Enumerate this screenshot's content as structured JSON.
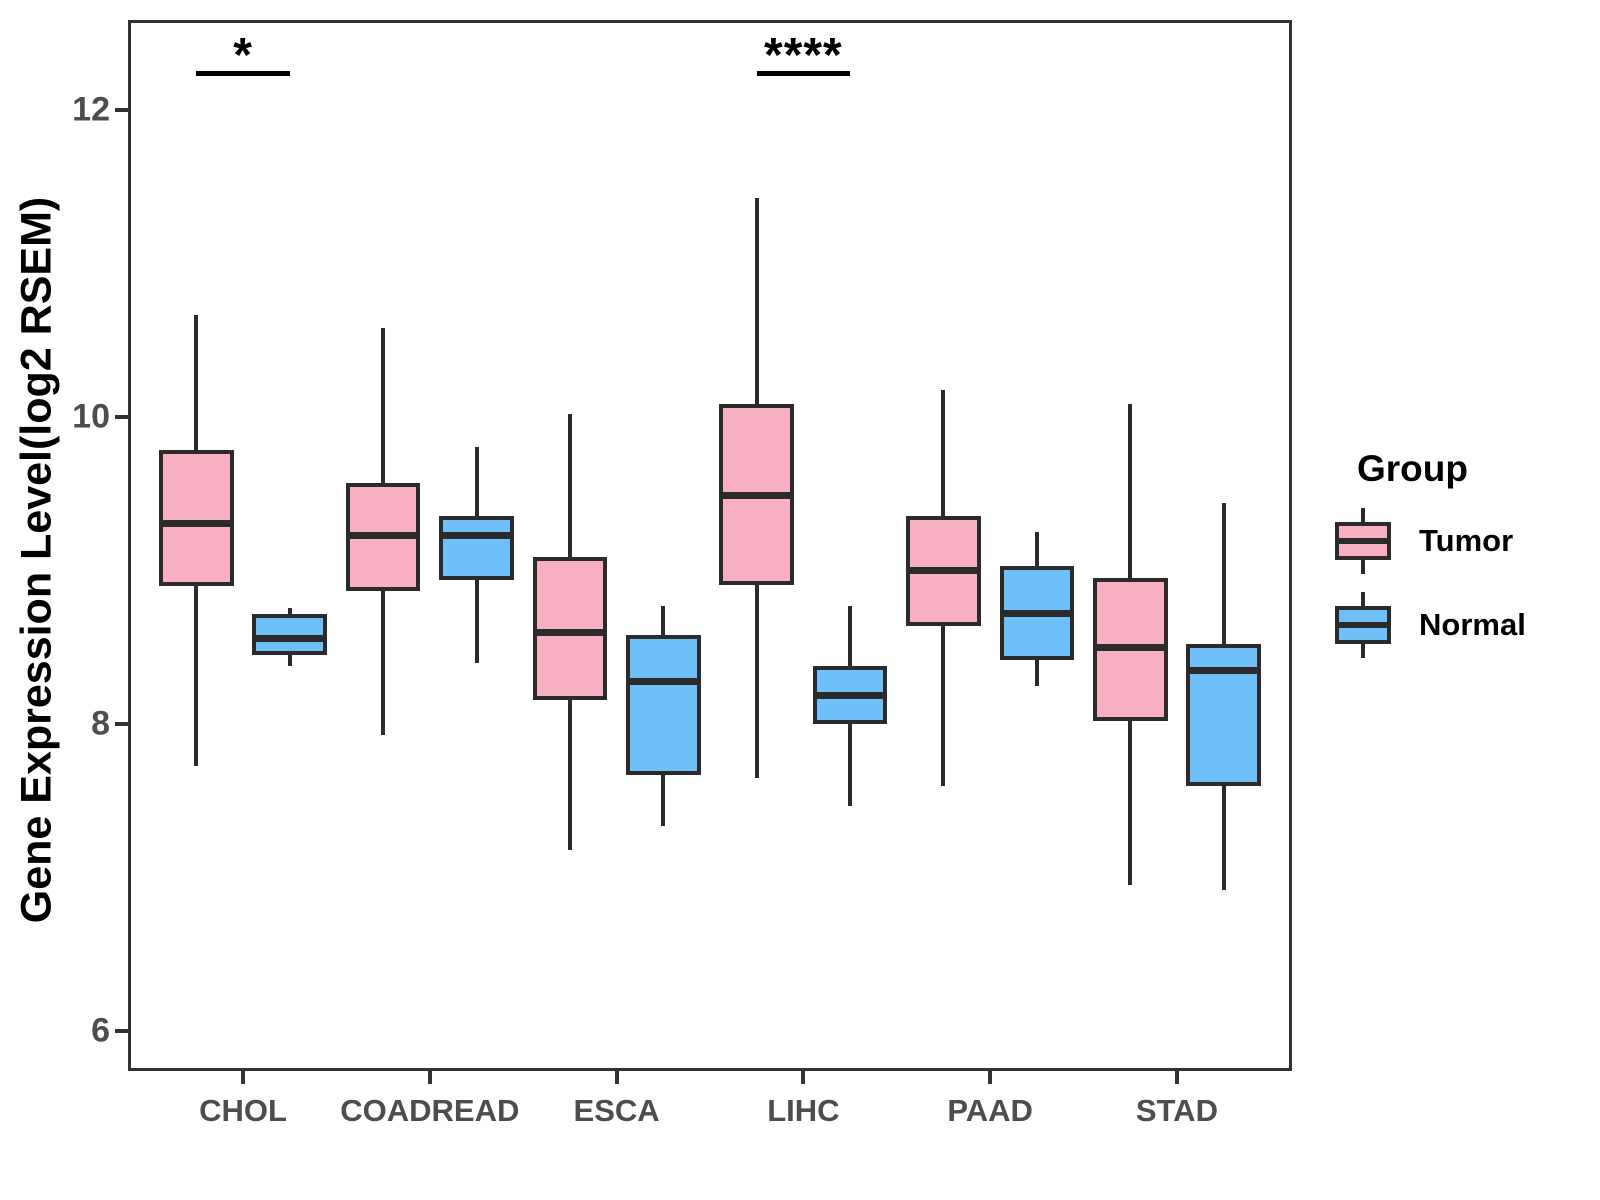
{
  "figure": {
    "background": "#ffffff"
  },
  "axis": {
    "y_title": "Gene Expression Level(log2 RSEM)",
    "x_title": "",
    "tick_color": "#333333",
    "tick_text_color": "#4d4d4d"
  },
  "legend": {
    "title": "Group",
    "items": [
      {
        "label": "Tumor",
        "fill": "#f9afc2"
      },
      {
        "label": "Normal",
        "fill": "#6fbff8"
      }
    ]
  },
  "chart_data": {
    "type": "boxplot",
    "title": "",
    "xlabel": "",
    "ylabel": "Gene Expression Level(log2 RSEM)",
    "ylim": [
      5.76,
      12.57
    ],
    "yticks": [
      6,
      8,
      10,
      12
    ],
    "grid": false,
    "legend_position": "right",
    "legend_title": "Group",
    "stroke_color": "#2b2b2b",
    "categories": [
      "CHOL",
      "COADREAD",
      "ESCA",
      "LIHC",
      "PAAD",
      "STAD"
    ],
    "series": [
      {
        "name": "Tumor",
        "fill": "#f9afc2",
        "boxes": [
          {
            "category": "CHOL",
            "min": 7.73,
            "q1": 8.9,
            "median": 9.31,
            "q3": 9.79,
            "max": 10.67
          },
          {
            "category": "COADREAD",
            "min": 7.93,
            "q1": 8.87,
            "median": 9.23,
            "q3": 9.57,
            "max": 10.58
          },
          {
            "category": "ESCA",
            "min": 7.18,
            "q1": 8.16,
            "median": 8.6,
            "q3": 9.09,
            "max": 10.02
          },
          {
            "category": "LIHC",
            "min": 7.65,
            "q1": 8.91,
            "median": 9.49,
            "q3": 10.09,
            "max": 11.43
          },
          {
            "category": "PAAD",
            "min": 7.6,
            "q1": 8.64,
            "median": 9.0,
            "q3": 9.36,
            "max": 10.18
          },
          {
            "category": "STAD",
            "min": 6.95,
            "q1": 8.02,
            "median": 8.5,
            "q3": 8.95,
            "max": 10.09
          }
        ]
      },
      {
        "name": "Normal",
        "fill": "#6fbff8",
        "boxes": [
          {
            "category": "CHOL",
            "min": 8.38,
            "q1": 8.45,
            "median": 8.56,
            "q3": 8.72,
            "max": 8.76
          },
          {
            "category": "COADREAD",
            "min": 8.4,
            "q1": 8.94,
            "median": 9.23,
            "q3": 9.36,
            "max": 9.81
          },
          {
            "category": "ESCA",
            "min": 7.34,
            "q1": 7.67,
            "median": 8.28,
            "q3": 8.58,
            "max": 8.77
          },
          {
            "category": "LIHC",
            "min": 7.47,
            "q1": 8.0,
            "median": 8.19,
            "q3": 8.38,
            "max": 8.77
          },
          {
            "category": "PAAD",
            "min": 8.25,
            "q1": 8.42,
            "median": 8.72,
            "q3": 9.03,
            "max": 9.25
          },
          {
            "category": "STAD",
            "min": 6.92,
            "q1": 7.6,
            "median": 8.35,
            "q3": 8.52,
            "max": 9.44
          }
        ]
      }
    ],
    "annotations": [
      {
        "category": "CHOL",
        "label": "*"
      },
      {
        "category": "LIHC",
        "label": "****"
      }
    ]
  }
}
